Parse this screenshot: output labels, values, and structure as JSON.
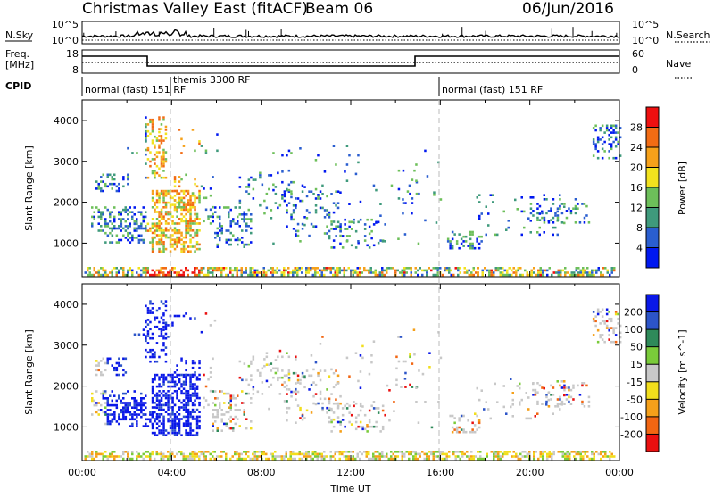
{
  "header": {
    "title": "Christmas Valley East (fitACF)",
    "beam": "Beam 06",
    "date": "06/Jun/2016"
  },
  "top_panels": {
    "nsky_label": "N.Sky",
    "nsky_ticks": [
      "10^5",
      "10^0"
    ],
    "nsearch_label": "N.Search",
    "nsearch_ticks": [
      "10^5",
      "10^0"
    ],
    "freq_label_1": "Freq.",
    "freq_label_2": "[MHz]",
    "freq_ticks": [
      "18",
      "8"
    ],
    "nave_label": "Nave",
    "nave_ticks": [
      "60",
      "0"
    ],
    "cpid_label": "CPID",
    "cpid_segments": [
      {
        "label": "normal (fast) 151 RF",
        "start_hour": 0
      },
      {
        "label": "themis 3300 RF",
        "start_hour": 4
      },
      {
        "label": "normal (fast) 151 RF",
        "start_hour": 16
      }
    ]
  },
  "chart_data": [
    {
      "type": "heatmap",
      "parameter": "Power",
      "ylabel": "Slant Range [km]",
      "yticks": [
        1000,
        2000,
        3000,
        4000
      ],
      "ylim": [
        180,
        4500
      ],
      "xlim_hours": [
        0,
        24
      ],
      "colorbar_label": "Power [dB]",
      "colorbar_ticks": [
        "4",
        "8",
        "12",
        "16",
        "20",
        "24",
        "28"
      ],
      "colorbar_range": [
        0,
        32
      ],
      "colors": [
        "#0018f0",
        "#2a5ed0",
        "#3f9a7c",
        "#6dbf5a",
        "#f2e21e",
        "#f6a11a",
        "#f26c14",
        "#ee1010"
      ]
    },
    {
      "type": "heatmap",
      "parameter": "Velocity",
      "ylabel": "Slant Range [km]",
      "yticks": [
        1000,
        2000,
        3000,
        4000
      ],
      "ylim": [
        180,
        4500
      ],
      "xlim_hours": [
        0,
        24
      ],
      "colorbar_label": "Velocity [m s^-1]",
      "colorbar_ticks": [
        "200",
        "100",
        "50",
        "15",
        "-15",
        "-50",
        "-100",
        "-200"
      ],
      "colors": [
        "#0a18e8",
        "#2c54c8",
        "#2f8a5a",
        "#7acb3a",
        "#c8c8c8",
        "#f2de1c",
        "#f5a01a",
        "#f26612",
        "#ea1010"
      ]
    }
  ],
  "xaxis": {
    "label": "Time UT",
    "ticks": [
      "00:00",
      "04:00",
      "08:00",
      "12:00",
      "16:00",
      "20:00",
      "00:00"
    ]
  }
}
